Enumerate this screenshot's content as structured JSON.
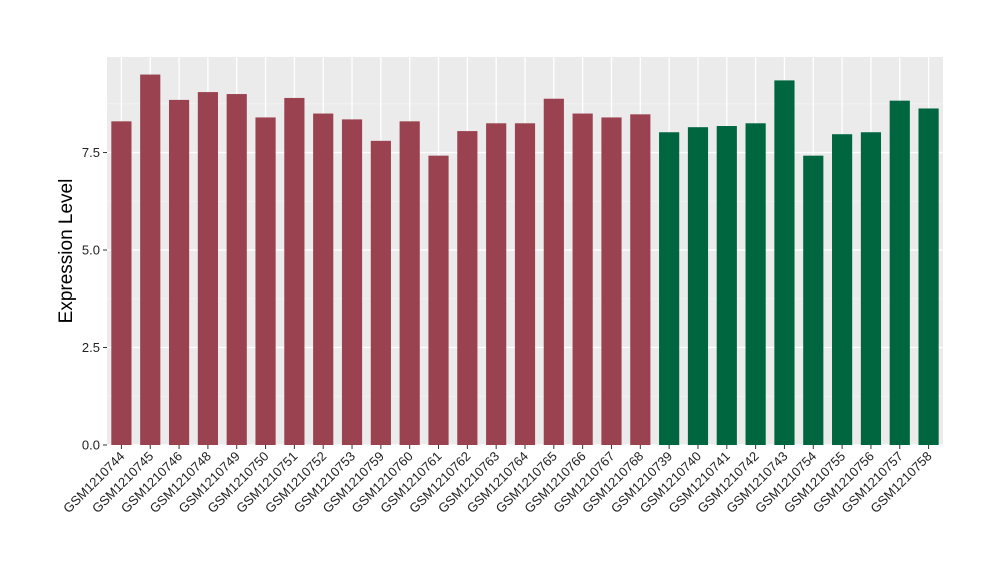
{
  "chart_data": {
    "type": "bar",
    "title": "",
    "xlabel": "",
    "ylabel": "Expression Level",
    "ylim": [
      0,
      9.95
    ],
    "yticks": [
      0.0,
      2.5,
      5.0,
      7.5
    ],
    "ytick_labels": [
      "0.0",
      "2.5",
      "5.0",
      "7.5"
    ],
    "grid": true,
    "legend": "none",
    "categories": [
      "GSM1210744",
      "GSM1210745",
      "GSM1210746",
      "GSM1210748",
      "GSM1210749",
      "GSM1210750",
      "GSM1210751",
      "GSM1210752",
      "GSM1210753",
      "GSM1210759",
      "GSM1210760",
      "GSM1210761",
      "GSM1210762",
      "GSM1210763",
      "GSM1210764",
      "GSM1210765",
      "GSM1210766",
      "GSM1210767",
      "GSM1210768",
      "GSM1210739",
      "GSM1210740",
      "GSM1210741",
      "GSM1210742",
      "GSM1210743",
      "GSM1210754",
      "GSM1210755",
      "GSM1210756",
      "GSM1210757",
      "GSM1210758"
    ],
    "values": [
      8.3,
      9.5,
      8.85,
      9.05,
      9.0,
      8.4,
      8.9,
      8.5,
      8.35,
      7.8,
      8.3,
      7.42,
      8.05,
      8.25,
      8.25,
      8.88,
      8.5,
      8.4,
      8.48,
      8.02,
      8.15,
      8.18,
      8.25,
      9.35,
      7.42,
      7.97,
      8.02,
      8.83,
      8.63
    ],
    "groups": [
      0,
      0,
      0,
      0,
      0,
      0,
      0,
      0,
      0,
      0,
      0,
      0,
      0,
      0,
      0,
      0,
      0,
      0,
      0,
      1,
      1,
      1,
      1,
      1,
      1,
      1,
      1,
      1,
      1
    ],
    "colors": {
      "group0": "#9a4250",
      "group1": "#006640",
      "panel": "#ebebeb",
      "grid_major": "#ffffff",
      "grid_minor": "#f4f4f4"
    }
  }
}
